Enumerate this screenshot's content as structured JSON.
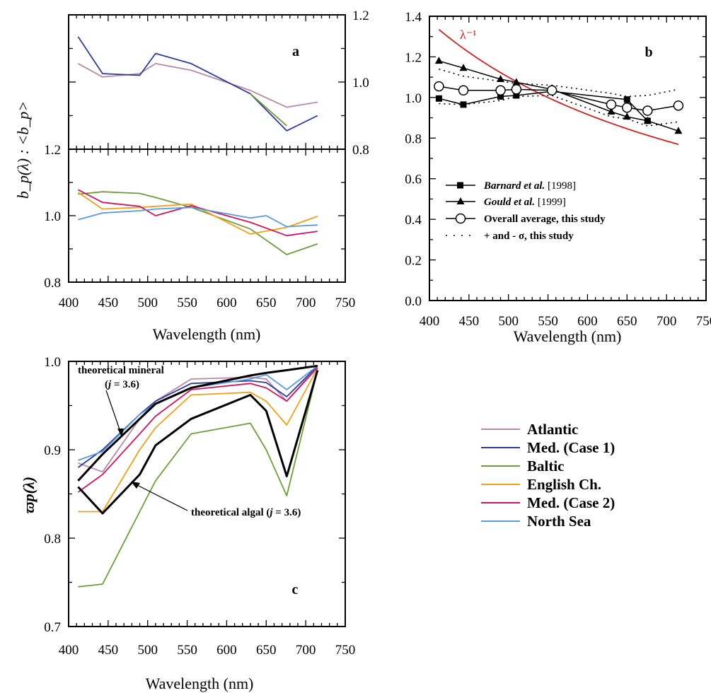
{
  "colors": {
    "Atlantic": "#b88aa8",
    "Med. (Case 1)": "#2d3c9a",
    "Baltic": "#6e9e3a",
    "English Ch.": "#f0a020",
    "Med. (Case 2)": "#cc1660",
    "North Sea": "#5a9ae0",
    "black": "#000000",
    "red": "#cc2222"
  },
  "legend_c": [
    "Atlantic",
    "Med. (Case 1)",
    "Baltic",
    "English Ch.",
    "Med. (Case 2)",
    "North Sea"
  ],
  "chart_data": [
    {
      "type": "line",
      "panel_label": "a",
      "ylabel": "b_p(λ) : <b_p>",
      "xlim": [
        400,
        750
      ],
      "x_ticks": [
        "400",
        "450",
        "500",
        "550",
        "600",
        "650",
        "700",
        "750"
      ],
      "upper": {
        "ylim": [
          0.8,
          1.2
        ],
        "y_ticks": [
          "1.2",
          "1.0",
          "0.8"
        ],
        "series": [
          {
            "name": "Atlantic",
            "x": [
              412,
              443,
              490,
              510,
              555,
              630,
              676,
              715
            ],
            "y": [
              1.055,
              1.015,
              1.025,
              1.055,
              1.035,
              0.975,
              0.925,
              0.94
            ]
          },
          {
            "name": "Med. (Case 1)",
            "x": [
              412,
              443,
              490,
              510,
              555,
              630,
              676,
              715
            ],
            "y": [
              1.135,
              1.025,
              1.02,
              1.085,
              1.055,
              0.965,
              0.855,
              0.9
            ]
          },
          {
            "name": "Baltic",
            "x": [
              630,
              676
            ],
            "y": [
              0.965,
              0.87
            ]
          }
        ]
      },
      "lower": {
        "ylim": [
          0.8,
          1.2
        ],
        "y_ticks": [
          "1.2",
          "1.0",
          "0.8"
        ],
        "series": [
          {
            "name": "Baltic",
            "x": [
              412,
              443,
              490,
              510,
              555,
              630,
              676,
              715
            ],
            "y": [
              1.065,
              1.072,
              1.067,
              1.055,
              1.025,
              0.96,
              0.883,
              0.915
            ]
          },
          {
            "name": "English Ch.",
            "x": [
              412,
              443,
              490,
              510,
              555,
              630,
              676,
              715
            ],
            "y": [
              1.07,
              1.02,
              1.025,
              1.028,
              1.035,
              0.945,
              0.965,
              0.998
            ]
          },
          {
            "name": "Med. (Case 2)",
            "x": [
              412,
              443,
              490,
              510,
              555,
              630,
              676,
              715
            ],
            "y": [
              1.078,
              1.04,
              1.028,
              1.0,
              1.03,
              0.98,
              0.94,
              0.953
            ]
          },
          {
            "name": "North Sea",
            "x": [
              412,
              443,
              490,
              510,
              555,
              630,
              650,
              676,
              715
            ],
            "y": [
              0.988,
              1.008,
              1.015,
              1.02,
              1.025,
              0.993,
              1.0,
              0.967,
              0.972
            ]
          }
        ]
      }
    },
    {
      "type": "line",
      "panel_label": "b",
      "xlabel": "Wavelength (nm)",
      "xlim": [
        400,
        750
      ],
      "ylim": [
        0.0,
        1.4
      ],
      "x_ticks": [
        "400",
        "450",
        "500",
        "550",
        "600",
        "650",
        "700",
        "750"
      ],
      "y_ticks": [
        "0.0",
        "0.2",
        "0.4",
        "0.6",
        "0.8",
        "1.0",
        "1.2",
        "1.4"
      ],
      "curve_label": "λ⁻¹",
      "series": [
        {
          "name": "Barnard et al. [1998]",
          "x": [
            412,
            443,
            490,
            510,
            555,
            650,
            676
          ],
          "y": [
            0.995,
            0.965,
            1.005,
            1.01,
            1.03,
            0.99,
            0.885
          ]
        },
        {
          "name": "Gould et al. [1999]",
          "x": [
            412,
            443,
            490,
            510,
            555,
            630,
            650,
            676,
            715
          ],
          "y": [
            1.18,
            1.145,
            1.09,
            1.075,
            1.04,
            0.93,
            0.905,
            0.885,
            0.835
          ]
        },
        {
          "name": "Overall average, this study",
          "x": [
            412,
            443,
            490,
            510,
            555,
            630,
            650,
            676,
            715
          ],
          "y": [
            1.055,
            1.035,
            1.035,
            1.04,
            1.035,
            0.965,
            0.95,
            0.935,
            0.96
          ]
        },
        {
          "name": "+ and - σ, this study",
          "x": [
            412,
            443,
            490,
            510,
            555,
            630,
            650,
            676,
            715
          ],
          "y": [
            1.14,
            1.105,
            1.08,
            1.07,
            1.06,
            1.02,
            1.005,
            1.01,
            1.04
          ]
        },
        {
          "name": "+ and - σ, this study",
          "x": [
            412,
            443,
            490,
            510,
            555,
            630,
            650,
            676,
            715
          ],
          "y": [
            0.97,
            0.965,
            0.985,
            1.005,
            1.01,
            0.905,
            0.895,
            0.86,
            0.88
          ]
        },
        {
          "name": "λ⁻¹",
          "x": [
            412,
            450,
            500,
            550,
            600,
            650,
            715
          ],
          "y": [
            1.335,
            1.222,
            1.1,
            1.0,
            0.917,
            0.846,
            0.769
          ]
        }
      ],
      "legend": [
        "Barnard et al. [1998]",
        "Gould et al. [1999]",
        "Overall average, this study",
        "+ and - σ, this study"
      ]
    },
    {
      "type": "line",
      "panel_label": "c",
      "xlabel": "Wavelength (nm)",
      "ylabel": "ϖp(λ)",
      "xlim": [
        400,
        750
      ],
      "ylim": [
        0.7,
        1.0
      ],
      "x_ticks": [
        "400",
        "450",
        "500",
        "550",
        "600",
        "650",
        "700",
        "750"
      ],
      "y_ticks": [
        "0.7",
        "0.8",
        "0.9",
        "1.0"
      ],
      "annotations": [
        "theoretical mineral",
        "(j = 3.6)",
        "theoretical algal (j = 3.6)"
      ],
      "series": [
        {
          "name": "Atlantic",
          "x": [
            412,
            443,
            490,
            510,
            555,
            630,
            650,
            676,
            715
          ],
          "y": [
            0.885,
            0.875,
            0.935,
            0.955,
            0.98,
            0.982,
            0.98,
            0.955,
            0.995
          ]
        },
        {
          "name": "Med. (Case 1)",
          "x": [
            412,
            443,
            490,
            510,
            555,
            630,
            650,
            676,
            715
          ],
          "y": [
            0.88,
            0.9,
            0.94,
            0.955,
            0.975,
            0.978,
            0.976,
            0.96,
            0.995
          ]
        },
        {
          "name": "Baltic",
          "x": [
            412,
            443,
            490,
            510,
            555,
            630,
            650,
            676,
            715
          ],
          "y": [
            0.745,
            0.748,
            0.83,
            0.865,
            0.918,
            0.93,
            0.9,
            0.848,
            0.99
          ]
        },
        {
          "name": "English Ch.",
          "x": [
            412,
            443,
            490,
            510,
            555,
            630,
            650,
            676,
            715
          ],
          "y": [
            0.83,
            0.83,
            0.9,
            0.925,
            0.962,
            0.965,
            0.955,
            0.928,
            0.992
          ]
        },
        {
          "name": "Med. (Case 2)",
          "x": [
            412,
            443,
            490,
            510,
            555,
            630,
            650,
            676,
            715
          ],
          "y": [
            0.852,
            0.872,
            0.918,
            0.938,
            0.968,
            0.975,
            0.97,
            0.955,
            0.993
          ]
        },
        {
          "name": "North Sea",
          "x": [
            412,
            443,
            490,
            510,
            555,
            630,
            650,
            676,
            715
          ],
          "y": [
            0.888,
            0.898,
            0.94,
            0.952,
            0.97,
            0.98,
            0.985,
            0.968,
            0.995
          ]
        },
        {
          "name": "theoretical mineral",
          "x": [
            412,
            443,
            490,
            510,
            555,
            630,
            650,
            676,
            715
          ],
          "y": [
            0.865,
            0.895,
            0.935,
            0.952,
            0.97,
            0.984,
            0.987,
            0.99,
            0.995
          ]
        },
        {
          "name": "theoretical algal",
          "x": [
            412,
            443,
            490,
            510,
            555,
            630,
            650,
            676,
            715
          ],
          "y": [
            0.858,
            0.828,
            0.872,
            0.905,
            0.935,
            0.962,
            0.944,
            0.87,
            0.99
          ]
        }
      ]
    }
  ]
}
